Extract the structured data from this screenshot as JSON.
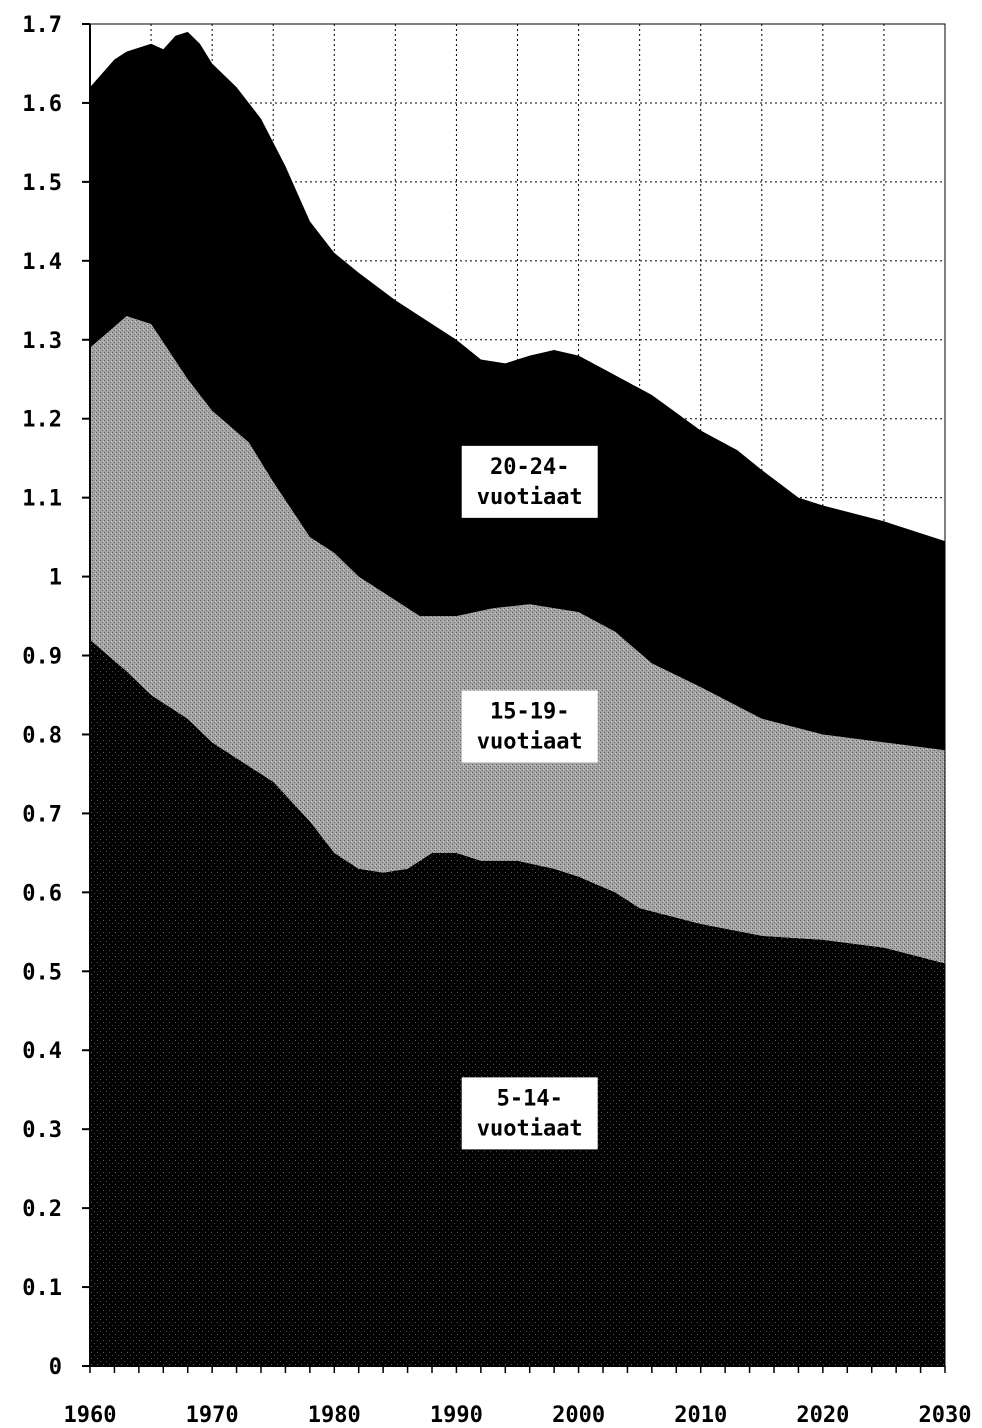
{
  "chart_data": {
    "type": "area",
    "stacked": true,
    "title": "",
    "xlabel": "",
    "ylabel": "",
    "xlim": [
      1960,
      2030
    ],
    "ylim": [
      0,
      1.7
    ],
    "grid": true,
    "legend": "none",
    "x_ticks": [
      1960,
      1970,
      1980,
      1990,
      2000,
      2010,
      2020,
      2030
    ],
    "y_ticks": [
      0,
      0.1,
      0.2,
      0.3,
      0.4,
      0.5,
      0.6,
      0.7,
      0.8,
      0.9,
      1,
      1.1,
      1.2,
      1.3,
      1.4,
      1.5,
      1.6,
      1.7
    ],
    "y_tick_labels": [
      "0",
      "0.1",
      "0.2",
      "0.3",
      "0.4",
      "0.5",
      "0.6",
      "0.7",
      "0.8",
      "0.9",
      "1",
      "1.1",
      "1.2",
      "1.3",
      "1.4",
      "1.5",
      "1.6",
      "1.7"
    ],
    "series": [
      {
        "label_lines": [
          "5-14-",
          "vuotiaat"
        ],
        "label_at": [
          1996,
          0.32
        ],
        "color": "#000000",
        "points": [
          [
            1960,
            0.92
          ],
          [
            1963,
            0.88
          ],
          [
            1965,
            0.85
          ],
          [
            1968,
            0.82
          ],
          [
            1970,
            0.79
          ],
          [
            1972,
            0.77
          ],
          [
            1975,
            0.74
          ],
          [
            1978,
            0.69
          ],
          [
            1980,
            0.65
          ],
          [
            1982,
            0.63
          ],
          [
            1984,
            0.625
          ],
          [
            1986,
            0.63
          ],
          [
            1988,
            0.65
          ],
          [
            1990,
            0.65
          ],
          [
            1992,
            0.64
          ],
          [
            1995,
            0.64
          ],
          [
            1998,
            0.63
          ],
          [
            2000,
            0.62
          ],
          [
            2003,
            0.6
          ],
          [
            2005,
            0.58
          ],
          [
            2010,
            0.56
          ],
          [
            2015,
            0.545
          ],
          [
            2020,
            0.54
          ],
          [
            2025,
            0.53
          ],
          [
            2030,
            0.51
          ]
        ]
      },
      {
        "label_lines": [
          "15-19-",
          "vuotiaat"
        ],
        "label_at": [
          1996,
          0.81
        ],
        "color": "#9c9c9c",
        "points": [
          [
            1960,
            1.29
          ],
          [
            1963,
            1.33
          ],
          [
            1965,
            1.32
          ],
          [
            1968,
            1.25
          ],
          [
            1970,
            1.21
          ],
          [
            1973,
            1.17
          ],
          [
            1975,
            1.12
          ],
          [
            1978,
            1.05
          ],
          [
            1980,
            1.03
          ],
          [
            1982,
            1.0
          ],
          [
            1985,
            0.97
          ],
          [
            1987,
            0.95
          ],
          [
            1990,
            0.95
          ],
          [
            1993,
            0.96
          ],
          [
            1996,
            0.965
          ],
          [
            2000,
            0.955
          ],
          [
            2003,
            0.93
          ],
          [
            2006,
            0.89
          ],
          [
            2010,
            0.86
          ],
          [
            2015,
            0.82
          ],
          [
            2020,
            0.8
          ],
          [
            2025,
            0.79
          ],
          [
            2030,
            0.78
          ]
        ]
      },
      {
        "label_lines": [
          "20-24-",
          "vuotiaat"
        ],
        "label_at": [
          1996,
          1.12
        ],
        "color": "#000000",
        "points": [
          [
            1960,
            1.62
          ],
          [
            1962,
            1.655
          ],
          [
            1963,
            1.665
          ],
          [
            1965,
            1.675
          ],
          [
            1966,
            1.668
          ],
          [
            1967,
            1.685
          ],
          [
            1968,
            1.69
          ],
          [
            1969,
            1.675
          ],
          [
            1970,
            1.65
          ],
          [
            1972,
            1.62
          ],
          [
            1974,
            1.58
          ],
          [
            1976,
            1.52
          ],
          [
            1978,
            1.45
          ],
          [
            1980,
            1.41
          ],
          [
            1982,
            1.385
          ],
          [
            1985,
            1.35
          ],
          [
            1988,
            1.32
          ],
          [
            1990,
            1.3
          ],
          [
            1992,
            1.275
          ],
          [
            1994,
            1.27
          ],
          [
            1996,
            1.28
          ],
          [
            1998,
            1.287
          ],
          [
            2000,
            1.28
          ],
          [
            2003,
            1.255
          ],
          [
            2006,
            1.23
          ],
          [
            2010,
            1.185
          ],
          [
            2013,
            1.16
          ],
          [
            2015,
            1.135
          ],
          [
            2018,
            1.1
          ],
          [
            2020,
            1.09
          ],
          [
            2025,
            1.07
          ],
          [
            2030,
            1.045
          ]
        ]
      }
    ]
  }
}
